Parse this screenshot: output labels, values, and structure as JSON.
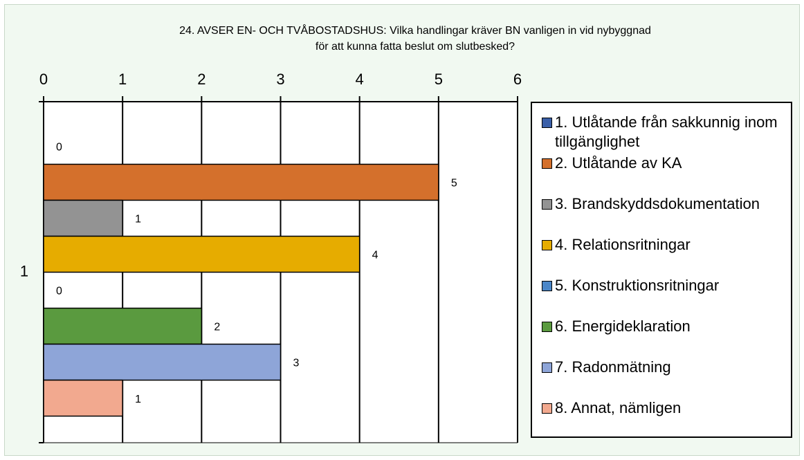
{
  "chart_data": {
    "type": "bar",
    "orientation": "horizontal",
    "title": [
      "24. AVSER EN- OCH TVÅBOSTADSHUS: Vilka handlingar kräver BN vanligen in vid nybyggnad",
      "för att kunna fatta beslut om slutbesked?"
    ],
    "categories": [
      "1"
    ],
    "series": [
      {
        "name": "1. Utlåtande från sakkunnig inom tillgänglighet",
        "color": "#3a5fa8",
        "values": [
          0
        ]
      },
      {
        "name": "2. Utlåtande av KA",
        "color": "#d4702c",
        "values": [
          5
        ]
      },
      {
        "name": "3. Brandskyddsdokumentation",
        "color": "#939393",
        "values": [
          1
        ]
      },
      {
        "name": "4. Relationsritningar",
        "color": "#e6ac00",
        "values": [
          4
        ]
      },
      {
        "name": "5. Konstruktionsritningar",
        "color": "#4a86c8",
        "values": [
          0
        ]
      },
      {
        "name": "6. Energideklaration",
        "color": "#5a9a3f",
        "values": [
          2
        ]
      },
      {
        "name": "7. Radonmätning",
        "color": "#8ea5d8",
        "values": [
          3
        ]
      },
      {
        "name": "8. Annat, nämligen",
        "color": "#f2a98f",
        "values": [
          1
        ]
      }
    ],
    "xlim": [
      0,
      6
    ],
    "xticks": [
      0,
      1,
      2,
      3,
      4,
      5,
      6
    ],
    "grid": true,
    "legend": "right",
    "data_labels": true
  }
}
